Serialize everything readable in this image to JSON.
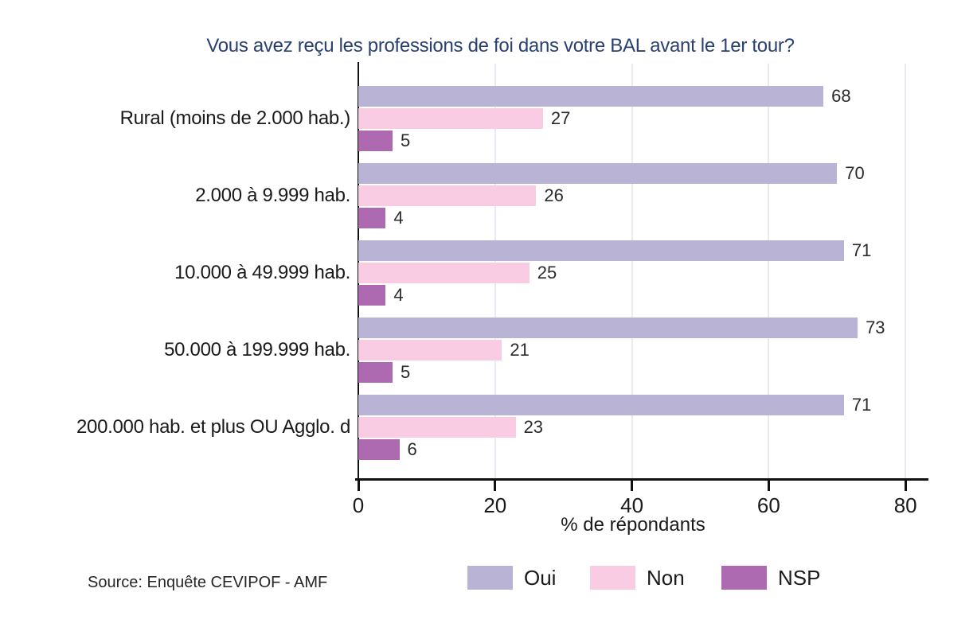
{
  "title": "Vous avez reçu les professions de foi dans votre BAL avant le 1er tour?",
  "source_note": "Source: Enquête CEVIPOF - AMF",
  "colors": {
    "title_text": "#2a4170",
    "body_text": "#1a1a1a",
    "axis": "#111111",
    "gridline": "#e9e9f2",
    "oui": "#b9b3d6",
    "non": "#f9cce3",
    "nsp": "#ae6ab1"
  },
  "chart_data": {
    "type": "bar",
    "orientation": "horizontal",
    "title": "Vous avez reçu les professions de foi dans votre BAL avant le 1er tour?",
    "categories": [
      "Rural (moins de 2.000 hab.)",
      "2.000 à 9.999 hab.",
      "10.000 à 49.999 hab.",
      "50.000 à 199.999 hab.",
      "200.000 hab. et plus OU Agglo. d"
    ],
    "series": [
      {
        "name": "Oui",
        "color": "#b9b3d6",
        "values": [
          68,
          70,
          71,
          73,
          71
        ]
      },
      {
        "name": "Non",
        "color": "#f9cce3",
        "values": [
          27,
          26,
          25,
          21,
          23
        ]
      },
      {
        "name": "NSP",
        "color": "#ae6ab1",
        "values": [
          5,
          4,
          4,
          5,
          6
        ]
      }
    ],
    "value_labels": true,
    "xlabel": "% de répondants",
    "x_ticks": [
      0,
      20,
      40,
      60,
      80
    ],
    "xlim": [
      0,
      83
    ],
    "grid": true,
    "legend_position": "bottom",
    "source": "Source: Enquête CEVIPOF - AMF"
  }
}
